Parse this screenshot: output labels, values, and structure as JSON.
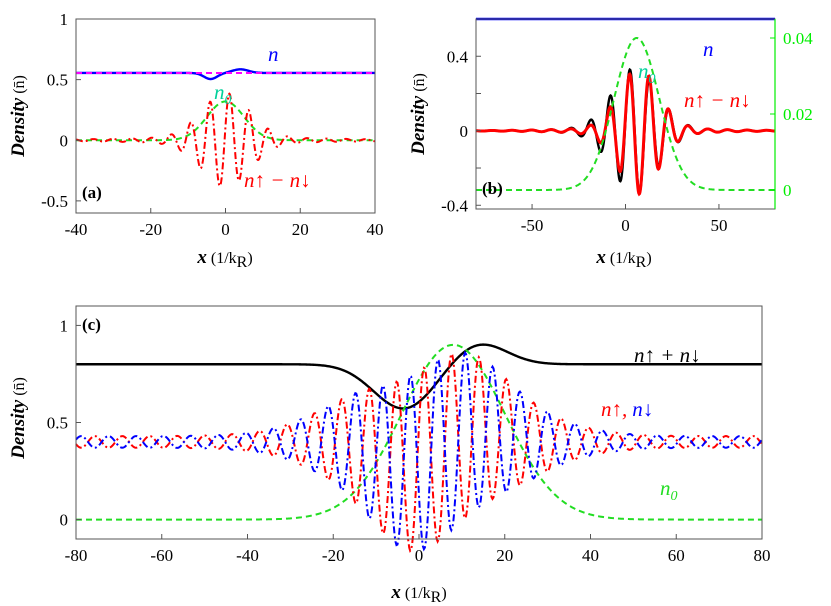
{
  "figure": {
    "ylabel": "Density",
    "ylabel_unit": "(n̄)",
    "xlabel": "x",
    "xlabel_unit": "(1/k",
    "xlabel_unit_sub": "R",
    "xlabel_unit_close": ")"
  },
  "chart_data": [
    {
      "id": "a",
      "type": "line",
      "panel_label": "(a)",
      "xlim": [
        -40,
        40
      ],
      "ylim": [
        -0.6,
        1.0
      ],
      "xticks": [
        -40,
        -20,
        0,
        20,
        40
      ],
      "yticks": [
        1,
        0.5,
        0,
        -0.5
      ],
      "ytick_labels": [
        "1",
        "0.5",
        "0",
        "-0.5"
      ],
      "annotations": [
        {
          "name": "n",
          "text": "n",
          "color": "#0000ff"
        },
        {
          "name": "n0",
          "text": "n",
          "sub": "0",
          "color": "#00d09a"
        },
        {
          "name": "diff",
          "text": "n↑ − n↓",
          "color": "#ff0000"
        }
      ],
      "series": [
        {
          "name": "n (total density)",
          "color": "#0000ff",
          "style": "solid",
          "model": {
            "base": 0.555,
            "dips": [
              {
                "center": -4,
                "amp": -0.05,
                "width": 2.5
              },
              {
                "center": 4,
                "amp": 0.03,
                "width": 3
              }
            ]
          }
        },
        {
          "name": "n reference",
          "color": "#ff00ff",
          "style": "dashed",
          "model": {
            "constant": 0.555
          }
        },
        {
          "name": "n0",
          "color": "#22dd22",
          "style": "dashed",
          "model": {
            "gauss": {
              "amp": 0.32,
              "center": 0,
              "width": 7
            }
          }
        },
        {
          "name": "n_up - n_down",
          "color": "#ff0000",
          "style": "dashdot",
          "model": {
            "osc": {
              "amp": 0.35,
              "center": 0,
              "width": 9,
              "period": 5.2,
              "phase": 0.3
            }
          }
        }
      ]
    },
    {
      "id": "b",
      "type": "line",
      "panel_label": "(b)",
      "xlim": [
        -80,
        80
      ],
      "ylim": [
        -0.42,
        0.6
      ],
      "xticks": [
        -50,
        0,
        50
      ],
      "yticks": [
        0.4,
        0.2,
        0,
        -0.2,
        -0.4
      ],
      "ytick_labels": [
        "0.4",
        "",
        "0",
        "",
        "-0.4"
      ],
      "right_axis": {
        "ylim": [
          -0.005,
          0.045
        ],
        "yticks": [
          0,
          0.02,
          0.04
        ],
        "ytick_labels": [
          "0",
          "0.02",
          "0.04"
        ],
        "color": "#00ee00"
      },
      "annotations": [
        {
          "name": "n",
          "text": "n",
          "color": "#0000ff"
        },
        {
          "name": "n0",
          "text": "n",
          "sub": "0",
          "color": "#00d09a"
        },
        {
          "name": "diff",
          "text": "n↑ − n↓",
          "color": "#ff0000"
        }
      ],
      "series": [
        {
          "name": "n",
          "color": "#0000ff",
          "style": "solid",
          "model": {
            "constant": 0.6
          }
        },
        {
          "name": "n_up - n_down (numeric)",
          "color": "#000000",
          "style": "solid",
          "model": {
            "osc": {
              "amp": 0.3,
              "center": 5,
              "width": 17,
              "period": 10.5,
              "phase": 0.2
            }
          }
        },
        {
          "name": "n_up - n_down (model)",
          "color": "#ff0000",
          "style": "solid-thick",
          "model": {
            "osc": {
              "amp": 0.3,
              "center": 7,
              "width": 15,
              "period": 10.5,
              "phase": 0.3
            }
          }
        },
        {
          "name": "n0 (right axis)",
          "color": "#22dd22",
          "style": "dashed",
          "axis": "right",
          "model": {
            "gauss": {
              "amp": 0.04,
              "center": 6,
              "width": 17
            }
          }
        }
      ]
    },
    {
      "id": "c",
      "type": "line",
      "panel_label": "(c)",
      "xlim": [
        -80,
        80
      ],
      "ylim": [
        -0.1,
        1.1
      ],
      "xticks": [
        -80,
        -60,
        -40,
        -20,
        0,
        20,
        40,
        60,
        80
      ],
      "yticks": [
        1,
        0.5,
        0
      ],
      "ytick_labels": [
        "1",
        "0.5",
        "0"
      ],
      "annotations": [
        {
          "name": "sum",
          "text": "n↑ + n↓",
          "color": "#000000"
        },
        {
          "name": "updown",
          "text": "n↑,",
          "text2": "n↓",
          "color": "#ff0000",
          "color2": "#0000ff"
        },
        {
          "name": "n0",
          "text": "n",
          "sub": "0",
          "color": "#22dd22"
        }
      ],
      "series": [
        {
          "name": "n_up + n_down",
          "color": "#000000",
          "style": "solid",
          "model": {
            "base": 0.8,
            "dips": [
              {
                "center": -3.5,
                "amp": -0.23,
                "width": 10
              },
              {
                "center": 14,
                "amp": 0.11,
                "width": 9
              }
            ]
          }
        },
        {
          "name": "n0",
          "color": "#22dd22",
          "style": "dashed",
          "model": {
            "gauss": {
              "amp": 0.9,
              "center": 8,
              "width": 17
            }
          }
        },
        {
          "name": "n_up",
          "color": "#ff0000",
          "style": "dashdot",
          "model": {
            "half": {
              "sign": 1,
              "sumKey": true
            }
          }
        },
        {
          "name": "n_down",
          "color": "#0000ff",
          "style": "dashdot",
          "model": {
            "half": {
              "sign": -1,
              "sumKey": true
            }
          }
        }
      ]
    }
  ]
}
